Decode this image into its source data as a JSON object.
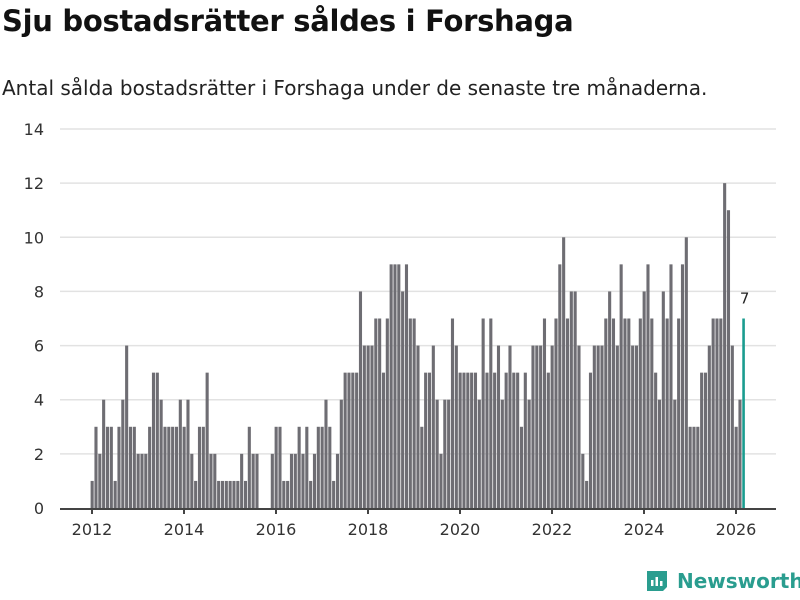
{
  "title": "Sju bostadsrätter såldes i Forshaga",
  "subtitle": "Antal sålda bostadsrätter i Forshaga under de senaste tre månaderna.",
  "brand": "Newsworthy",
  "colors": {
    "bar": "#6e6d73",
    "highlight": "#1a9c8f",
    "brand": "#2a9d8f"
  },
  "chart_data": {
    "type": "bar",
    "title": "Sju bostadsrätter såldes i Forshaga",
    "xlabel": "",
    "ylabel": "",
    "ylim": [
      0,
      14
    ],
    "yticks": [
      0,
      2,
      4,
      6,
      8,
      10,
      12,
      14
    ],
    "xticks": [
      "2012",
      "2014",
      "2016",
      "2018",
      "2020",
      "2022",
      "2024",
      "2026"
    ],
    "start": "2012-01",
    "frequency": "monthly",
    "values": [
      1,
      3,
      2,
      4,
      3,
      3,
      1,
      3,
      4,
      6,
      3,
      3,
      2,
      2,
      2,
      3,
      5,
      5,
      4,
      3,
      3,
      3,
      3,
      4,
      3,
      4,
      2,
      1,
      3,
      3,
      5,
      2,
      2,
      1,
      1,
      1,
      1,
      1,
      1,
      2,
      1,
      3,
      2,
      2,
      0,
      0,
      0,
      2,
      3,
      3,
      1,
      1,
      2,
      2,
      3,
      2,
      3,
      1,
      2,
      3,
      3,
      4,
      3,
      1,
      2,
      4,
      5,
      5,
      5,
      5,
      8,
      6,
      6,
      6,
      7,
      7,
      5,
      7,
      9,
      9,
      9,
      8,
      9,
      7,
      7,
      6,
      3,
      5,
      5,
      6,
      4,
      2,
      4,
      4,
      7,
      6,
      5,
      5,
      5,
      5,
      5,
      4,
      7,
      5,
      7,
      5,
      6,
      4,
      5,
      6,
      5,
      5,
      3,
      5,
      4,
      6,
      6,
      6,
      7,
      5,
      6,
      7,
      9,
      10,
      7,
      8,
      8,
      6,
      2,
      1,
      5,
      6,
      6,
      6,
      7,
      8,
      7,
      6,
      9,
      7,
      7,
      6,
      6,
      7,
      8,
      9,
      7,
      5,
      4,
      8,
      7,
      9,
      4,
      7,
      9,
      10,
      3,
      3,
      3,
      5,
      5,
      6,
      7,
      7,
      7,
      12,
      11,
      6,
      3,
      4,
      7
    ],
    "highlight_label": "7"
  }
}
